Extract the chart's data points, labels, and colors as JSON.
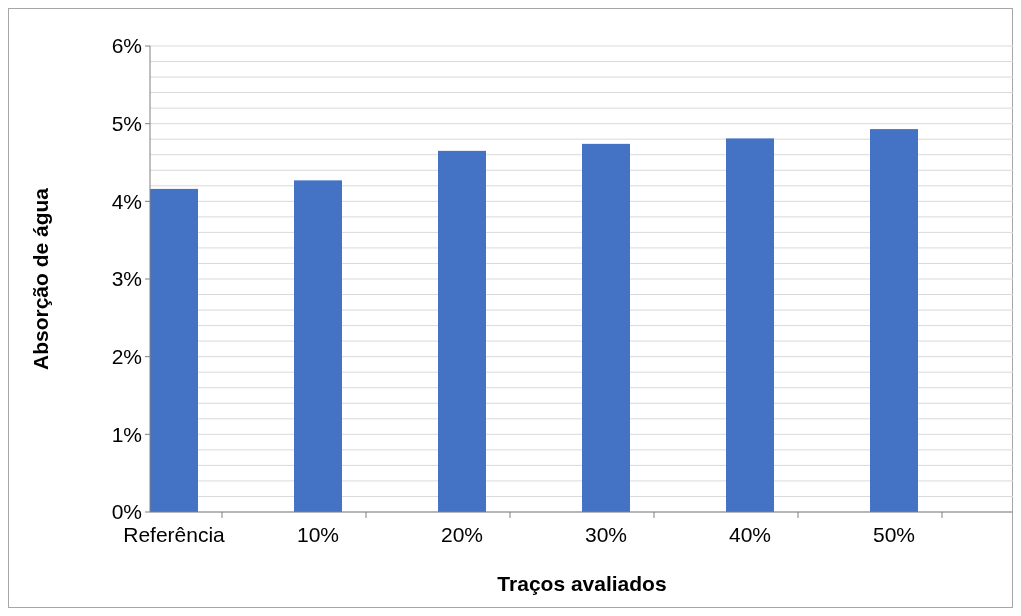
{
  "chart_data": {
    "type": "bar",
    "xlabel": "Traços avaliados",
    "ylabel": "Absorção de água",
    "categories": [
      "Referência",
      "10%",
      "20%",
      "30%",
      "40%",
      "50%"
    ],
    "values": [
      4.16,
      4.27,
      4.65,
      4.74,
      4.81,
      4.93
    ],
    "color": "#4472c4",
    "ylim": [
      0,
      6
    ],
    "yticks": [
      {
        "value": 0,
        "label": "0%"
      },
      {
        "value": 0.2,
        "label": null
      },
      {
        "value": 0.4,
        "label": null
      },
      {
        "value": 0.6,
        "label": null
      },
      {
        "value": 0.8,
        "label": null
      },
      {
        "value": 1,
        "label": "1%"
      },
      {
        "value": 1.2,
        "label": null
      },
      {
        "value": 1.4,
        "label": null
      },
      {
        "value": 1.6,
        "label": null
      },
      {
        "value": 1.8,
        "label": null
      },
      {
        "value": 2,
        "label": "2%"
      },
      {
        "value": 2.2,
        "label": null
      },
      {
        "value": 2.4,
        "label": null
      },
      {
        "value": 2.6,
        "label": null
      },
      {
        "value": 2.8,
        "label": null
      },
      {
        "value": 3,
        "label": "3%"
      },
      {
        "value": 3.2,
        "label": null
      },
      {
        "value": 3.4,
        "label": null
      },
      {
        "value": 3.6,
        "label": null
      },
      {
        "value": 3.8,
        "label": null
      },
      {
        "value": 4,
        "label": "4%"
      },
      {
        "value": 4.2,
        "label": null
      },
      {
        "value": 4.4,
        "label": null
      },
      {
        "value": 4.6,
        "label": null
      },
      {
        "value": 4.8,
        "label": null
      },
      {
        "value": 5,
        "label": "5%"
      },
      {
        "value": 5.2,
        "label": null
      },
      {
        "value": 5.4,
        "label": null
      },
      {
        "value": 5.6,
        "label": null
      },
      {
        "value": 5.8,
        "label": null
      },
      {
        "value": 6,
        "label": "6%"
      }
    ],
    "grid": "y"
  }
}
